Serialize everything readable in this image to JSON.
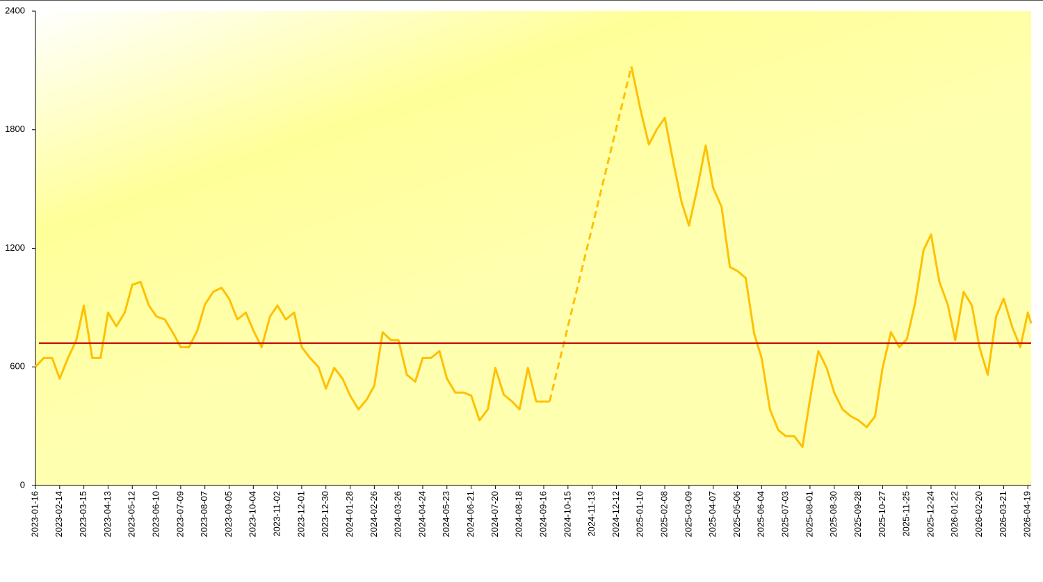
{
  "chart_data": {
    "type": "line",
    "x": [
      "2023-01-16",
      "2023-01-26",
      "2023-02-05",
      "2023-02-14",
      "2023-02-24",
      "2023-03-06",
      "2023-03-15",
      "2023-03-25",
      "2023-04-04",
      "2023-04-13",
      "2023-04-23",
      "2023-05-03",
      "2023-05-12",
      "2023-05-22",
      "2023-06-01",
      "2023-06-10",
      "2023-06-20",
      "2023-06-30",
      "2023-07-09",
      "2023-07-19",
      "2023-07-29",
      "2023-08-07",
      "2023-08-17",
      "2023-08-27",
      "2023-09-05",
      "2023-09-15",
      "2023-09-25",
      "2023-10-04",
      "2023-10-14",
      "2023-10-24",
      "2023-11-02",
      "2023-11-12",
      "2023-11-22",
      "2023-12-01",
      "2023-12-11",
      "2023-12-21",
      "2023-12-30",
      "2024-01-09",
      "2024-01-19",
      "2024-01-28",
      "2024-02-07",
      "2024-02-17",
      "2024-02-26",
      "2024-03-07",
      "2024-03-17",
      "2024-03-26",
      "2024-04-05",
      "2024-04-15",
      "2024-04-24",
      "2024-05-04",
      "2024-05-14",
      "2024-05-23",
      "2024-06-02",
      "2024-06-12",
      "2024-06-21",
      "2024-07-01",
      "2024-07-11",
      "2024-07-20",
      "2024-07-30",
      "2024-08-09",
      "2024-08-18",
      "2024-08-28",
      "2024-09-07",
      "2024-09-16",
      "2024-09-23",
      "2024-11-13",
      "2024-12-30",
      "2025-01-10",
      "2025-01-20",
      "2025-01-30",
      "2025-02-08",
      "2025-02-18",
      "2025-02-28",
      "2025-03-09",
      "2025-03-19",
      "2025-03-29",
      "2025-04-07",
      "2025-04-17",
      "2025-04-27",
      "2025-05-06",
      "2025-05-16",
      "2025-05-26",
      "2025-06-04",
      "2025-06-14",
      "2025-06-24",
      "2025-07-03",
      "2025-07-13",
      "2025-07-23",
      "2025-08-01",
      "2025-08-11",
      "2025-08-21",
      "2025-08-30",
      "2025-09-09",
      "2025-09-19",
      "2025-09-28",
      "2025-10-08",
      "2025-10-18",
      "2025-10-27",
      "2025-11-06",
      "2025-11-16",
      "2025-11-25",
      "2025-12-05",
      "2025-12-15",
      "2025-12-24",
      "2026-01-03",
      "2026-01-13",
      "2026-01-22",
      "2026-02-01",
      "2026-02-11",
      "2026-02-20",
      "2026-03-02",
      "2026-03-12",
      "2026-03-21",
      "2026-03-31",
      "2026-04-10",
      "2026-04-19",
      "2026-04-23"
    ],
    "series": [
      {
        "color": "#ffc000",
        "values": [
          600,
          645,
          645,
          540,
          645,
          735,
          910,
          645,
          645,
          875,
          805,
          875,
          1015,
          1030,
          910,
          855,
          840,
          770,
          700,
          700,
          785,
          915,
          980,
          1000,
          945,
          840,
          875,
          785,
          700,
          855,
          910,
          840,
          875,
          700,
          645,
          600,
          490,
          595,
          540,
          455,
          385,
          435,
          505,
          775,
          735,
          735,
          560,
          525,
          645,
          645,
          680,
          540,
          470,
          470,
          455,
          330,
          385,
          595,
          460,
          425,
          385,
          595,
          425,
          425,
          425,
          null,
          2120,
          1900,
          1725,
          1805,
          1860,
          1640,
          1435,
          1315,
          1505,
          1720,
          1505,
          1410,
          1105,
          1085,
          1050,
          770,
          645,
          385,
          280,
          250,
          250,
          195,
          435,
          680,
          595,
          470,
          385,
          350,
          330,
          295,
          350,
          595,
          775,
          700,
          740,
          925,
          1190,
          1270,
          1030,
          915,
          735,
          980,
          910,
          700,
          560,
          855,
          945,
          805,
          700,
          875,
          820
        ]
      }
    ],
    "null_gaps": "dashed",
    "reference_line": {
      "value": 720,
      "color": "#c00000"
    },
    "xlim": [
      "2023-01-16",
      "2026-04-23"
    ],
    "xticks": [
      "2023-01-16",
      "2023-02-14",
      "2023-03-15",
      "2023-04-13",
      "2023-05-12",
      "2023-06-10",
      "2023-07-09",
      "2023-08-07",
      "2023-09-05",
      "2023-10-04",
      "2023-11-02",
      "2023-12-01",
      "2023-12-30",
      "2024-01-28",
      "2024-02-26",
      "2024-03-26",
      "2024-04-24",
      "2024-05-23",
      "2024-06-21",
      "2024-07-20",
      "2024-08-18",
      "2024-09-16",
      "2024-10-15",
      "2024-11-13",
      "2024-12-12",
      "2025-01-10",
      "2025-02-08",
      "2025-03-09",
      "2025-04-07",
      "2025-05-06",
      "2025-06-04",
      "2025-07-03",
      "2025-08-01",
      "2025-08-30",
      "2025-09-28",
      "2025-10-27",
      "2025-11-25",
      "2025-12-24",
      "2026-01-22",
      "2026-02-20",
      "2026-03-21",
      "2026-04-19"
    ],
    "ylim": [
      0,
      2400
    ],
    "yticks": [
      0,
      600,
      1200,
      1800,
      2400
    ],
    "grid": false
  }
}
